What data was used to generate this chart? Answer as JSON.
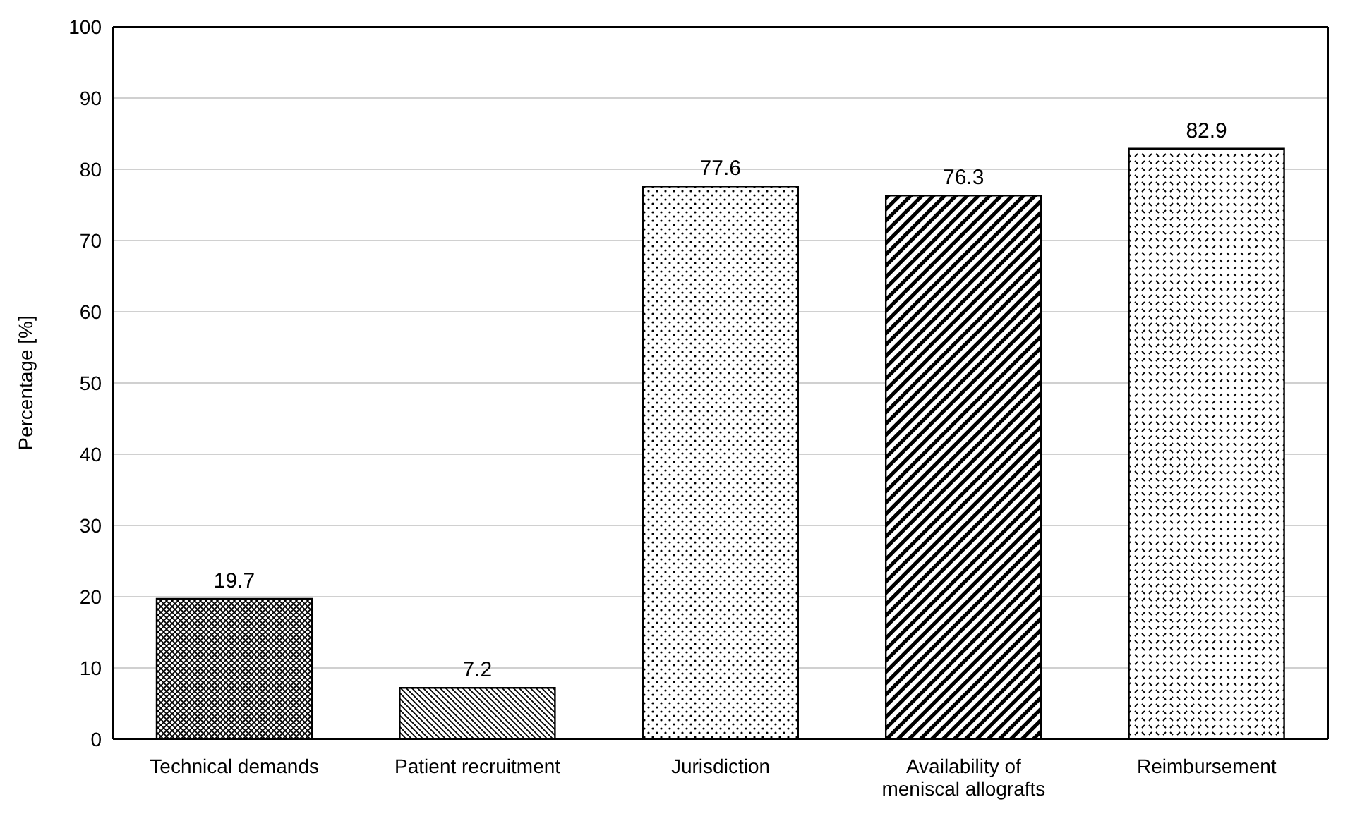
{
  "chart_data": {
    "type": "bar",
    "ylabel": "Percentage [%]",
    "categories": [
      "Technical demands",
      "Patient recruitment",
      "Jurisdiction",
      "Availability of meniscal allografts",
      "Reimbursement"
    ],
    "values": [
      19.7,
      7.2,
      77.6,
      76.3,
      82.9
    ],
    "colors": [
      "#000000",
      "#000000",
      "#000000",
      "#000000",
      "#000000"
    ],
    "ylim": [
      0,
      100
    ],
    "yticks": [
      0,
      10,
      20,
      30,
      40,
      50,
      60,
      70,
      80,
      90,
      100
    ],
    "grid": "y",
    "data_labels": true
  }
}
